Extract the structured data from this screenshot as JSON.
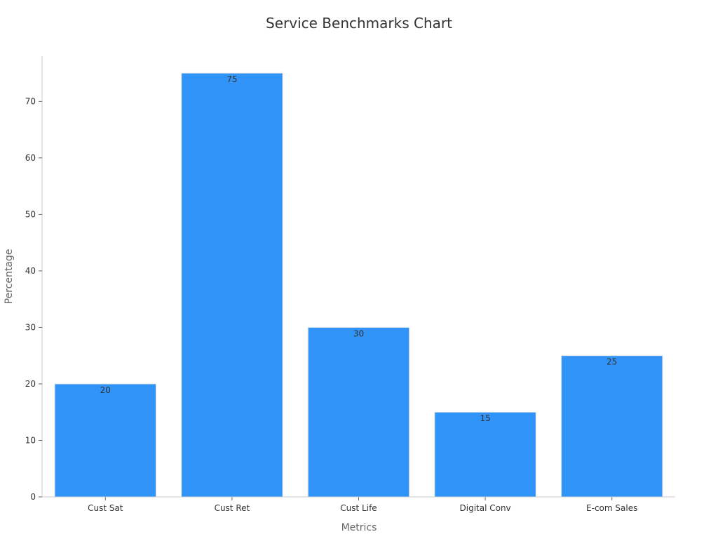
{
  "chart_data": {
    "type": "bar",
    "title": "Service Benchmarks Chart",
    "xlabel": "Metrics",
    "ylabel": "Percentage",
    "categories": [
      "Cust Sat",
      "Cust Ret",
      "Cust Life",
      "Digital Conv",
      "E-com Sales"
    ],
    "values": [
      20,
      75,
      30,
      15,
      25
    ],
    "ylim": [
      0,
      78
    ],
    "yticks": [
      0,
      10,
      20,
      30,
      40,
      50,
      60,
      70
    ],
    "grid": false,
    "legend": "none",
    "bar_color": "#2f93f7",
    "bar_stroke": "#e5e5e5"
  }
}
